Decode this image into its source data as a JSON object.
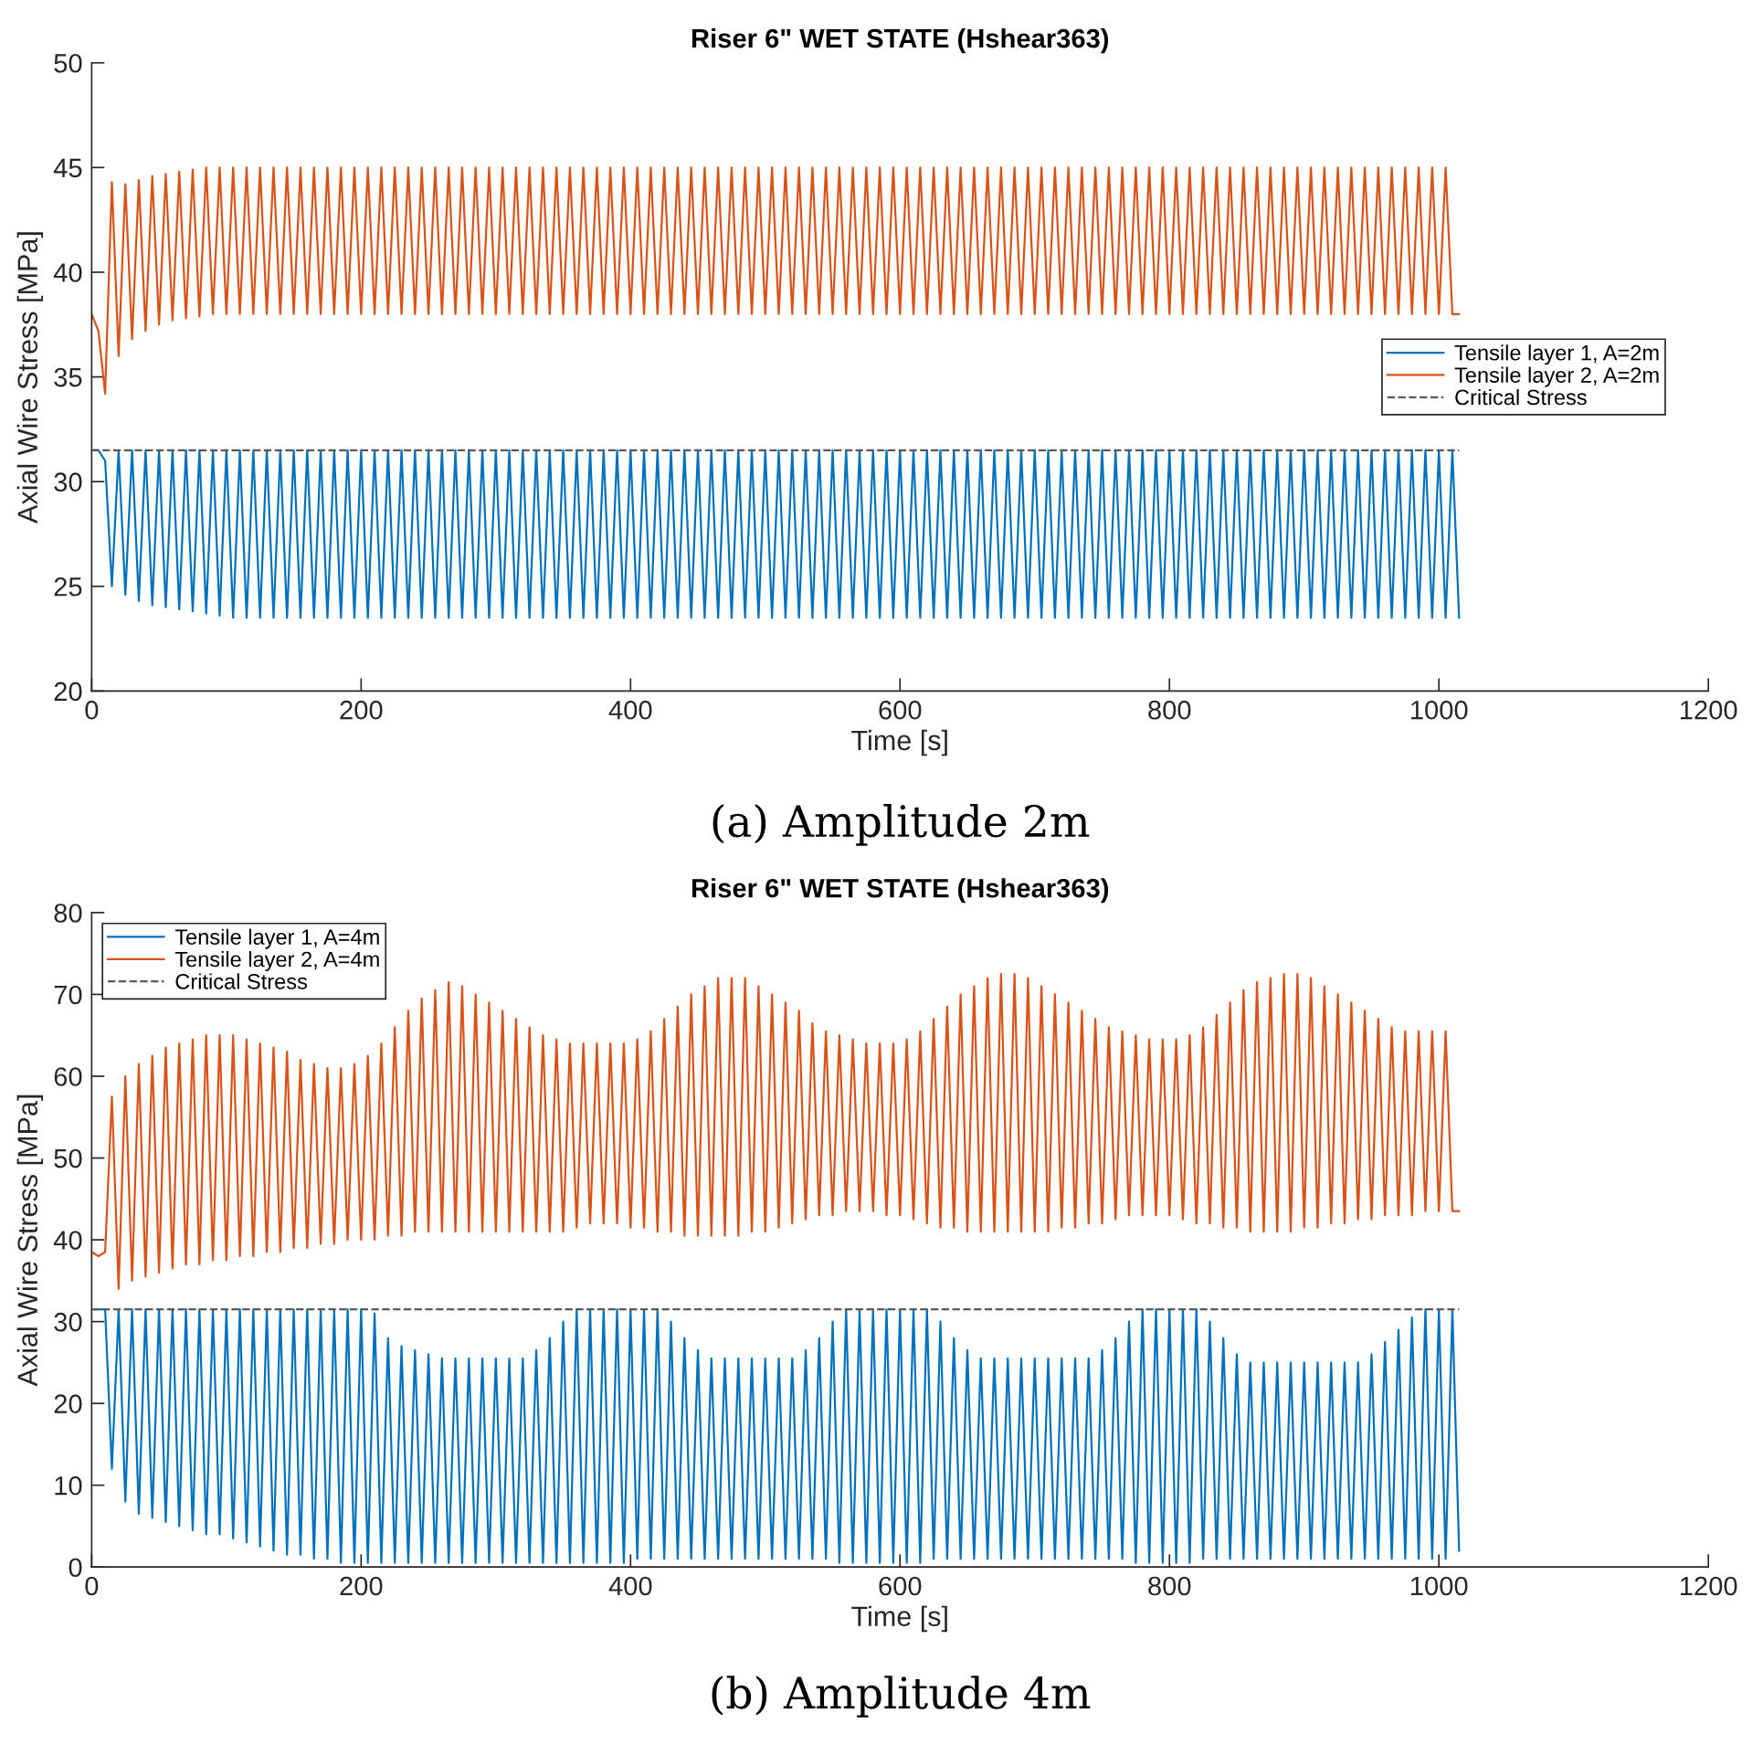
{
  "chart_data": [
    {
      "type": "line",
      "title": "Riser 6\" WET STATE (Hshear363)",
      "xlabel": "Time [s]",
      "ylabel": "Axial Wire Stress [MPa]",
      "x": [
        0,
        5,
        10,
        15,
        20,
        25,
        30,
        35,
        40,
        45,
        50,
        55,
        60,
        65,
        70,
        75,
        80,
        85,
        90,
        95,
        100,
        105,
        110,
        115,
        120,
        125,
        130,
        135,
        140,
        145,
        150,
        155,
        160,
        165,
        170,
        175,
        180,
        185,
        190,
        195,
        200,
        205,
        210,
        215,
        220,
        225,
        230,
        235,
        240,
        245,
        250,
        255,
        260,
        265,
        270,
        275,
        280,
        285,
        290,
        295,
        300,
        305,
        310,
        315,
        320,
        325,
        330,
        335,
        340,
        345,
        350,
        355,
        360,
        365,
        370,
        375,
        380,
        385,
        390,
        395,
        400,
        405,
        410,
        415,
        420,
        425,
        430,
        435,
        440,
        445,
        450,
        455,
        460,
        465,
        470,
        475,
        480,
        485,
        490,
        495,
        500,
        505,
        510,
        515,
        520,
        525,
        530,
        535,
        540,
        545,
        550,
        555,
        560,
        565,
        570,
        575,
        580,
        585,
        590,
        595,
        600,
        605,
        610,
        615,
        620,
        625,
        630,
        635,
        640,
        645,
        650,
        655,
        660,
        665,
        670,
        675,
        680,
        685,
        690,
        695,
        700,
        705,
        710,
        715,
        720,
        725,
        730,
        735,
        740,
        745,
        750,
        755,
        760,
        765,
        770,
        775,
        780,
        785,
        790,
        795,
        800,
        805,
        810,
        815,
        820,
        825,
        830,
        835,
        840,
        845,
        850,
        855,
        860,
        865,
        870,
        875,
        880,
        885,
        890,
        895,
        900,
        905,
        910,
        915,
        920,
        925,
        930,
        935,
        940,
        945,
        950,
        955,
        960,
        965,
        970,
        975,
        980,
        985,
        990,
        995,
        1000,
        1005,
        1010,
        1015
      ],
      "series": [
        {
          "name": "Tensile layer 1, A=2m",
          "color": "#0072bd",
          "values": [
            31.5,
            31.5,
            31,
            25,
            31.5,
            24.6,
            31.5,
            24.3,
            31.5,
            24.1,
            31.5,
            24,
            31.5,
            23.9,
            31.5,
            23.8,
            31.5,
            23.7,
            31.5,
            23.6,
            31.5,
            23.5,
            31.5,
            23.5,
            31.5,
            23.5,
            31.5,
            23.5,
            31.5,
            23.5,
            31.5,
            23.5,
            31.5,
            23.5,
            31.5,
            23.5,
            31.5,
            23.5,
            31.5,
            23.5,
            31.5,
            23.5,
            31.5,
            23.5,
            31.5,
            23.5,
            31.5,
            23.5,
            31.5,
            23.5,
            31.5,
            23.5,
            31.5,
            23.5,
            31.5,
            23.5,
            31.5,
            23.5,
            31.5,
            23.5,
            31.5,
            23.5,
            31.5,
            23.5,
            31.5,
            23.5,
            31.5,
            23.5,
            31.5,
            23.5,
            31.5,
            23.5,
            31.5,
            23.5,
            31.5,
            23.5,
            31.5,
            23.5,
            31.5,
            23.5,
            31.5,
            23.5,
            31.5,
            23.5,
            31.5,
            23.5,
            31.5,
            23.5,
            31.5,
            23.5,
            31.5,
            23.5,
            31.5,
            23.5,
            31.5,
            23.5,
            31.5,
            23.5,
            31.5,
            23.5,
            31.5,
            23.5,
            31.5,
            23.5,
            31.5,
            23.5,
            31.5,
            23.5,
            31.5,
            23.5,
            31.5,
            23.5,
            31.5,
            23.5,
            31.5,
            23.5,
            31.5,
            23.5,
            31.5,
            23.5,
            31.5,
            23.5,
            31.5,
            23.5,
            31.5,
            23.5,
            31.5,
            23.5,
            31.5,
            23.5,
            31.5,
            23.5,
            31.5,
            23.5,
            31.5,
            23.5,
            31.5,
            23.5,
            31.5,
            23.5,
            31.5,
            23.5,
            31.5,
            23.5,
            31.5,
            23.5,
            31.5,
            23.5,
            31.5,
            23.5,
            31.5,
            23.5,
            31.5,
            23.5,
            31.5,
            23.5,
            31.5,
            23.5,
            31.5,
            23.5,
            31.5,
            23.5,
            31.5,
            23.5,
            31.5,
            23.5,
            31.5,
            23.5,
            31.5,
            23.5,
            31.5,
            23.5,
            31.5,
            23.5,
            31.5,
            23.5,
            31.5,
            23.5,
            31.5,
            23.5,
            31.5,
            23.5,
            31.5,
            23.5,
            31.5,
            23.5,
            31.5,
            23.5,
            31.5,
            23.5,
            31.5,
            23.5,
            31.5,
            23.5,
            31.5,
            23.5,
            31.5,
            23.5,
            31.5,
            23.5,
            31.5,
            23.5,
            31.5,
            23.5
          ]
        },
        {
          "name": "Tensile layer 2, A=2m",
          "color": "#d95319",
          "values": [
            38,
            37.2,
            34.2,
            44.3,
            36,
            44.2,
            36.8,
            44.4,
            37.2,
            44.6,
            37.5,
            44.7,
            37.7,
            44.8,
            37.8,
            44.9,
            37.9,
            45,
            38,
            45,
            38,
            45,
            38,
            45,
            38,
            45,
            38,
            45,
            38,
            45,
            38,
            45,
            38,
            45,
            38,
            45,
            38,
            45,
            38,
            45,
            38,
            45,
            38,
            45,
            38,
            45,
            38,
            45,
            38,
            45,
            38,
            45,
            38,
            45,
            38,
            45,
            38,
            45,
            38,
            45,
            38,
            45,
            38,
            45,
            38,
            45,
            38,
            45,
            38,
            45,
            38,
            45,
            38,
            45,
            38,
            45,
            38,
            45,
            38,
            45,
            38,
            45,
            38,
            45,
            38,
            45,
            38,
            45,
            38,
            45,
            38,
            45,
            38,
            45,
            38,
            45,
            38,
            45,
            38,
            45,
            38,
            45,
            38,
            45,
            38,
            45,
            38,
            45,
            38,
            45,
            38,
            45,
            38,
            45,
            38,
            45,
            38,
            45,
            38,
            45,
            38,
            45,
            38,
            45,
            38,
            45,
            38,
            45,
            38,
            45,
            38,
            45,
            38,
            45,
            38,
            45,
            38,
            45,
            38,
            45,
            38,
            45,
            38,
            45,
            38,
            45,
            38,
            45,
            38,
            45,
            38,
            45,
            38,
            45,
            38,
            45,
            38,
            45,
            38,
            45,
            38,
            45,
            38,
            45,
            38,
            45,
            38,
            45,
            38,
            45,
            38,
            45,
            38,
            45,
            38,
            45,
            38,
            45,
            38,
            45,
            38,
            45,
            38,
            45,
            38,
            45,
            38,
            45,
            38,
            45,
            38,
            45,
            38,
            45,
            38,
            45,
            38,
            45,
            38,
            45,
            38,
            45,
            38,
            38
          ]
        }
      ],
      "ref_lines": [
        {
          "axis": "y",
          "value": 31.5,
          "label": "Critical Stress",
          "color": "#595959",
          "line_style": "dashed"
        }
      ],
      "xlim": [
        0,
        1200
      ],
      "ylim": [
        20,
        50
      ],
      "xticks": [
        0,
        200,
        400,
        600,
        800,
        1000,
        1200
      ],
      "yticks": [
        20,
        25,
        30,
        35,
        40,
        45,
        50
      ],
      "legend": "right",
      "annotations": [
        "(a) Amplitude 2m"
      ]
    },
    {
      "type": "line",
      "title": "Riser 6\" WET STATE (Hshear363)",
      "xlabel": "Time [s]",
      "ylabel": "Axial Wire Stress [MPa]",
      "x": [
        0,
        5,
        10,
        15,
        20,
        25,
        30,
        35,
        40,
        45,
        50,
        55,
        60,
        65,
        70,
        75,
        80,
        85,
        90,
        95,
        100,
        105,
        110,
        115,
        120,
        125,
        130,
        135,
        140,
        145,
        150,
        155,
        160,
        165,
        170,
        175,
        180,
        185,
        190,
        195,
        200,
        205,
        210,
        215,
        220,
        225,
        230,
        235,
        240,
        245,
        250,
        255,
        260,
        265,
        270,
        275,
        280,
        285,
        290,
        295,
        300,
        305,
        310,
        315,
        320,
        325,
        330,
        335,
        340,
        345,
        350,
        355,
        360,
        365,
        370,
        375,
        380,
        385,
        390,
        395,
        400,
        405,
        410,
        415,
        420,
        425,
        430,
        435,
        440,
        445,
        450,
        455,
        460,
        465,
        470,
        475,
        480,
        485,
        490,
        495,
        500,
        505,
        510,
        515,
        520,
        525,
        530,
        535,
        540,
        545,
        550,
        555,
        560,
        565,
        570,
        575,
        580,
        585,
        590,
        595,
        600,
        605,
        610,
        615,
        620,
        625,
        630,
        635,
        640,
        645,
        650,
        655,
        660,
        665,
        670,
        675,
        680,
        685,
        690,
        695,
        700,
        705,
        710,
        715,
        720,
        725,
        730,
        735,
        740,
        745,
        750,
        755,
        760,
        765,
        770,
        775,
        780,
        785,
        790,
        795,
        800,
        805,
        810,
        815,
        820,
        825,
        830,
        835,
        840,
        845,
        850,
        855,
        860,
        865,
        870,
        875,
        880,
        885,
        890,
        895,
        900,
        905,
        910,
        915,
        920,
        925,
        930,
        935,
        940,
        945,
        950,
        955,
        960,
        965,
        970,
        975,
        980,
        985,
        990,
        995,
        1000,
        1005,
        1010,
        1015
      ],
      "series": [
        {
          "name": "Tensile layer 1, A=4m",
          "color": "#0072bd",
          "values": [
            31.5,
            31.5,
            31.5,
            12,
            31.5,
            8,
            31.5,
            6.5,
            31.5,
            6,
            31.5,
            5.5,
            31.5,
            5,
            31.5,
            4.5,
            31.5,
            4,
            31.5,
            4,
            31.5,
            3.5,
            31.5,
            3,
            31.5,
            2.5,
            31.5,
            2,
            31.5,
            1.5,
            31.5,
            1.5,
            31.5,
            1,
            31.5,
            1,
            31.5,
            0.5,
            31.5,
            0.5,
            31.5,
            0.5,
            31,
            0.5,
            28,
            0.5,
            27,
            0.5,
            26.5,
            0.5,
            26,
            0.5,
            25.5,
            0.5,
            25.5,
            0.5,
            25.5,
            0.5,
            25.5,
            0.5,
            25.5,
            0.5,
            25.5,
            0.5,
            25.5,
            0.5,
            26.5,
            0.5,
            28,
            0.5,
            30,
            0.5,
            31.5,
            0.5,
            31.5,
            0.5,
            31.5,
            0.5,
            31.5,
            0.5,
            31.5,
            1,
            31.5,
            1,
            31.5,
            1,
            30,
            1,
            28,
            1,
            26.5,
            1,
            25.5,
            1,
            25.5,
            1,
            25.5,
            1,
            25.5,
            1,
            25.5,
            1,
            25.5,
            1,
            25.5,
            1,
            26.5,
            1,
            28,
            1,
            30,
            0.5,
            31.5,
            0.5,
            31.5,
            0.5,
            31.5,
            0.5,
            31.5,
            0.5,
            31.5,
            0.5,
            31.5,
            0.5,
            31.5,
            1,
            30,
            1,
            28,
            1,
            26.5,
            1,
            25.5,
            1,
            25.5,
            1,
            25.5,
            1,
            25.5,
            1,
            25.5,
            1,
            25.5,
            1,
            25.5,
            1,
            25.5,
            1,
            25.5,
            1,
            26.5,
            1,
            28,
            1,
            30,
            0.5,
            31.5,
            0.5,
            31.5,
            0.5,
            31.5,
            0.5,
            31.5,
            0.5,
            31.5,
            1,
            30,
            1,
            28,
            1,
            26,
            1,
            25,
            1,
            25,
            1,
            25,
            1,
            25,
            1,
            25,
            1,
            25,
            1,
            25,
            1,
            25,
            1,
            25,
            1,
            26,
            1,
            27.5,
            1,
            29,
            1,
            30.5,
            1,
            31.5,
            1,
            31.5,
            1,
            31.5,
            2
          ]
        },
        {
          "name": "Tensile layer 2, A=4m",
          "color": "#d95319",
          "values": [
            38.5,
            38,
            38.5,
            57.5,
            34,
            60,
            35,
            61.5,
            35.5,
            62.5,
            36,
            63.5,
            36.5,
            64,
            37,
            64.5,
            37,
            65,
            37.5,
            65,
            37.5,
            65,
            38,
            64.5,
            38,
            64,
            38.5,
            63.5,
            38.5,
            63,
            39,
            62,
            39,
            61.5,
            39.5,
            61,
            39.5,
            61,
            40,
            61.5,
            40,
            62.5,
            40,
            64,
            40.5,
            66,
            40.5,
            68,
            41,
            69.5,
            41,
            70.5,
            41,
            71.5,
            41,
            71,
            41,
            70,
            41,
            69,
            41,
            68,
            41,
            67,
            41,
            66,
            41,
            65,
            41,
            64.5,
            41,
            64,
            41.5,
            64,
            42,
            64,
            42,
            64,
            42,
            64,
            41.5,
            64.5,
            41.5,
            65.5,
            41,
            67,
            41,
            68.5,
            40.5,
            70,
            40.5,
            71,
            40.5,
            72,
            40.5,
            72,
            40.5,
            72,
            41,
            71,
            41,
            70,
            41.5,
            69,
            42,
            68,
            42.5,
            66.5,
            43,
            65.5,
            43,
            65,
            43.5,
            64.5,
            43.5,
            64,
            43.5,
            64,
            43,
            64,
            43,
            64.5,
            42.5,
            65.5,
            42,
            67,
            41.5,
            68.5,
            41.5,
            70,
            41,
            71,
            41,
            72,
            41,
            72.5,
            41,
            72.5,
            41,
            72,
            41,
            71,
            41,
            70,
            41.5,
            69,
            41.5,
            68,
            42,
            67,
            42,
            66,
            42.5,
            65.5,
            43,
            65,
            43,
            64.5,
            43,
            64.5,
            43,
            64.5,
            42.5,
            65,
            42,
            66,
            42,
            67.5,
            41.5,
            69,
            41.5,
            70.5,
            41,
            71.5,
            41,
            72,
            41,
            72.5,
            41,
            72.5,
            41.5,
            72,
            41.5,
            71,
            42,
            70,
            42,
            69,
            42.5,
            68,
            42.5,
            67,
            43,
            66,
            43,
            65.5,
            43,
            65.5,
            43.5,
            65.5,
            43.5,
            65.5,
            43.5,
            43.5
          ]
        }
      ],
      "ref_lines": [
        {
          "axis": "y",
          "value": 31.5,
          "label": "Critical Stress",
          "color": "#595959",
          "line_style": "dashed"
        }
      ],
      "xlim": [
        0,
        1200
      ],
      "ylim": [
        0,
        80
      ],
      "xticks": [
        0,
        200,
        400,
        600,
        800,
        1000,
        1200
      ],
      "yticks": [
        0,
        10,
        20,
        30,
        40,
        50,
        60,
        70,
        80
      ],
      "legend": "top left",
      "annotations": [
        "(b) Amplitude 4m"
      ]
    }
  ]
}
